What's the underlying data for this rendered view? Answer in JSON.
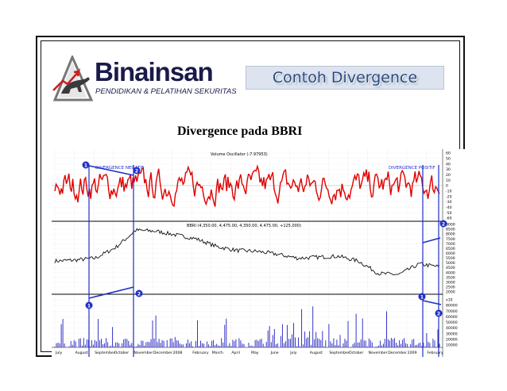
{
  "logo": {
    "name": "Binainsan",
    "tagline": "PENDIDIKAN & PELATIHAN SEKURITAS"
  },
  "title": "Contoh Divergence",
  "subtitle": "Divergence pada BBRI",
  "colors": {
    "oscillator": "#e00000",
    "price": "#111111",
    "volume": "#2020c0",
    "annotation": "#2030c8",
    "title_box": "#dde4ef",
    "title_text": "#2b4a7e"
  },
  "chart": {
    "oscillator_label": "Volume Oscillator (-7.97953)",
    "price_label": "BBRI (4,350.00, 4,475.00, 4,350.00, 4,475.00, +125.000)",
    "annotations": {
      "negative": "DIVERGENCE NEGATIF",
      "positive": "DIVERGENCE POSITIF"
    },
    "markers": [
      "1",
      "2",
      "1",
      "2",
      "2",
      "1"
    ],
    "oscillator_ticks": [
      "60",
      "50",
      "40",
      "30",
      "20",
      "10",
      "0",
      "-10",
      "-20",
      "-30",
      "-40",
      "-50",
      "-60"
    ],
    "price_ticks": [
      "9000",
      "8500",
      "8000",
      "7500",
      "7000",
      "6500",
      "6000",
      "5500",
      "5000",
      "4500",
      "4000",
      "3500",
      "3000",
      "2500",
      "2000"
    ],
    "volume_ticks": [
      "x10",
      "80000",
      "70000",
      "60000",
      "50000",
      "40000",
      "30000",
      "20000",
      "10000"
    ],
    "months": [
      "July",
      "August",
      "September",
      "October",
      "November",
      "December",
      "2008",
      "February",
      "March",
      "April",
      "May",
      "June",
      "July",
      "August",
      "September",
      "October",
      "November",
      "December",
      "2009",
      "February"
    ]
  },
  "chart_data": [
    {
      "type": "line",
      "title": "Volume Oscillator (-7.97953)",
      "ylim": [
        -60,
        60
      ],
      "series": [
        {
          "name": "Volume Oscillator",
          "color": "#e00000"
        }
      ],
      "annotations": [
        {
          "text": "DIVERGENCE NEGATIF",
          "from_marker": "1",
          "to_marker": "2"
        },
        {
          "text": "DIVERGENCE POSITIF",
          "from_marker": "1",
          "to_marker": "2"
        }
      ]
    },
    {
      "type": "line",
      "title": "BBRI (4,350.00, 4,475.00, 4,350.00, 4,475.00, +125.000)",
      "ylim": [
        2000,
        9000
      ],
      "x": [
        "July",
        "August",
        "September",
        "October",
        "November",
        "December",
        "2008",
        "February",
        "March",
        "April",
        "May",
        "June",
        "July",
        "August",
        "September",
        "October",
        "November",
        "December",
        "2009",
        "February"
      ],
      "series": [
        {
          "name": "BBRI",
          "values": [
            5200,
            5300,
            5500,
            6600,
            8400,
            8300,
            7900,
            7500,
            6700,
            6300,
            6200,
            5900,
            5500,
            5600,
            5700,
            5200,
            3900,
            3800,
            4900,
            4600
          ]
        }
      ]
    },
    {
      "type": "bar",
      "ylim": [
        0,
        90000
      ],
      "series": [
        {
          "name": "Volume",
          "color": "#2020c0"
        }
      ]
    }
  ]
}
